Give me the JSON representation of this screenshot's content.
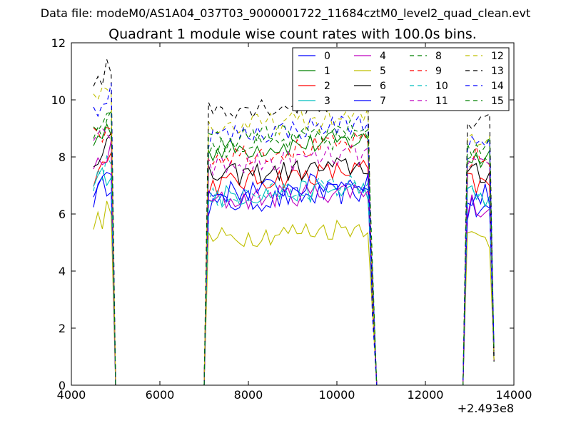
{
  "suptitle": "Data file: modeM0/AS1A04_037T03_9000001722_11684cztM0_level2_quad_clean.evt",
  "chart_data": {
    "type": "line",
    "title": "Quadrant 1 module wise count rates with 100.0s bins.",
    "xlabel": "",
    "ylabel": "",
    "x_offset_label": "+2.493e8",
    "xlim": [
      4000,
      14000
    ],
    "ylim": [
      0,
      12
    ],
    "xticks": [
      4000,
      6000,
      8000,
      10000,
      12000,
      14000
    ],
    "yticks": [
      0,
      2,
      4,
      6,
      8,
      10,
      12
    ],
    "grid": false,
    "legend_position": "top-right",
    "legend_columns": 4,
    "segments": [
      {
        "start": 4500,
        "end": 4900
      },
      {
        "start": 7000,
        "end": 10800
      },
      {
        "start": 12850,
        "end": 13550
      }
    ],
    "series": [
      {
        "name": "0",
        "color": "#0000ff",
        "dash": "solid",
        "levels": [
          6.6,
          6.3,
          6.8,
          6.1
        ]
      },
      {
        "name": "1",
        "color": "#008000",
        "dash": "solid",
        "levels": [
          8.5,
          8.2,
          8.6,
          8.0
        ]
      },
      {
        "name": "2",
        "color": "#ff0000",
        "dash": "solid",
        "levels": [
          7.4,
          7.0,
          7.6,
          7.0
        ]
      },
      {
        "name": "3",
        "color": "#00bfbf",
        "dash": "solid",
        "levels": [
          7.0,
          6.6,
          6.9,
          6.6
        ]
      },
      {
        "name": "4",
        "color": "#bf00bf",
        "dash": "solid",
        "levels": [
          7.6,
          6.4,
          6.9,
          6.3
        ]
      },
      {
        "name": "5",
        "color": "#bfbf00",
        "dash": "solid",
        "levels": [
          5.6,
          5.1,
          5.6,
          5.1
        ]
      },
      {
        "name": "6",
        "color": "#000000",
        "dash": "solid",
        "levels": [
          8.0,
          7.3,
          7.7,
          7.3
        ]
      },
      {
        "name": "7",
        "color": "#0000ff",
        "dash": "solid",
        "levels": [
          6.9,
          6.7,
          7.2,
          6.6
        ]
      },
      {
        "name": "8",
        "color": "#008000",
        "dash": "dashed",
        "levels": [
          8.8,
          8.3,
          8.7,
          8.2
        ]
      },
      {
        "name": "9",
        "color": "#ff0000",
        "dash": "dashed",
        "levels": [
          8.6,
          8.0,
          8.5,
          7.9
        ]
      },
      {
        "name": "10",
        "color": "#00bfbf",
        "dash": "dashed",
        "levels": [
          7.2,
          6.5,
          7.1,
          6.5
        ]
      },
      {
        "name": "11",
        "color": "#bf00bf",
        "dash": "dashed",
        "levels": [
          8.3,
          7.6,
          8.1,
          7.5
        ]
      },
      {
        "name": "12",
        "color": "#bfbf00",
        "dash": "dashed",
        "levels": [
          10.0,
          9.0,
          9.4,
          8.7
        ]
      },
      {
        "name": "13",
        "color": "#000000",
        "dash": "dashed",
        "levels": [
          10.6,
          9.7,
          9.9,
          9.2
        ]
      },
      {
        "name": "14",
        "color": "#0000ff",
        "dash": "dashed",
        "levels": [
          9.7,
          8.7,
          9.2,
          8.3
        ]
      },
      {
        "name": "15",
        "color": "#008000",
        "dash": "dashed",
        "levels": [
          9.1,
          8.6,
          9.0,
          8.4
        ]
      }
    ]
  }
}
